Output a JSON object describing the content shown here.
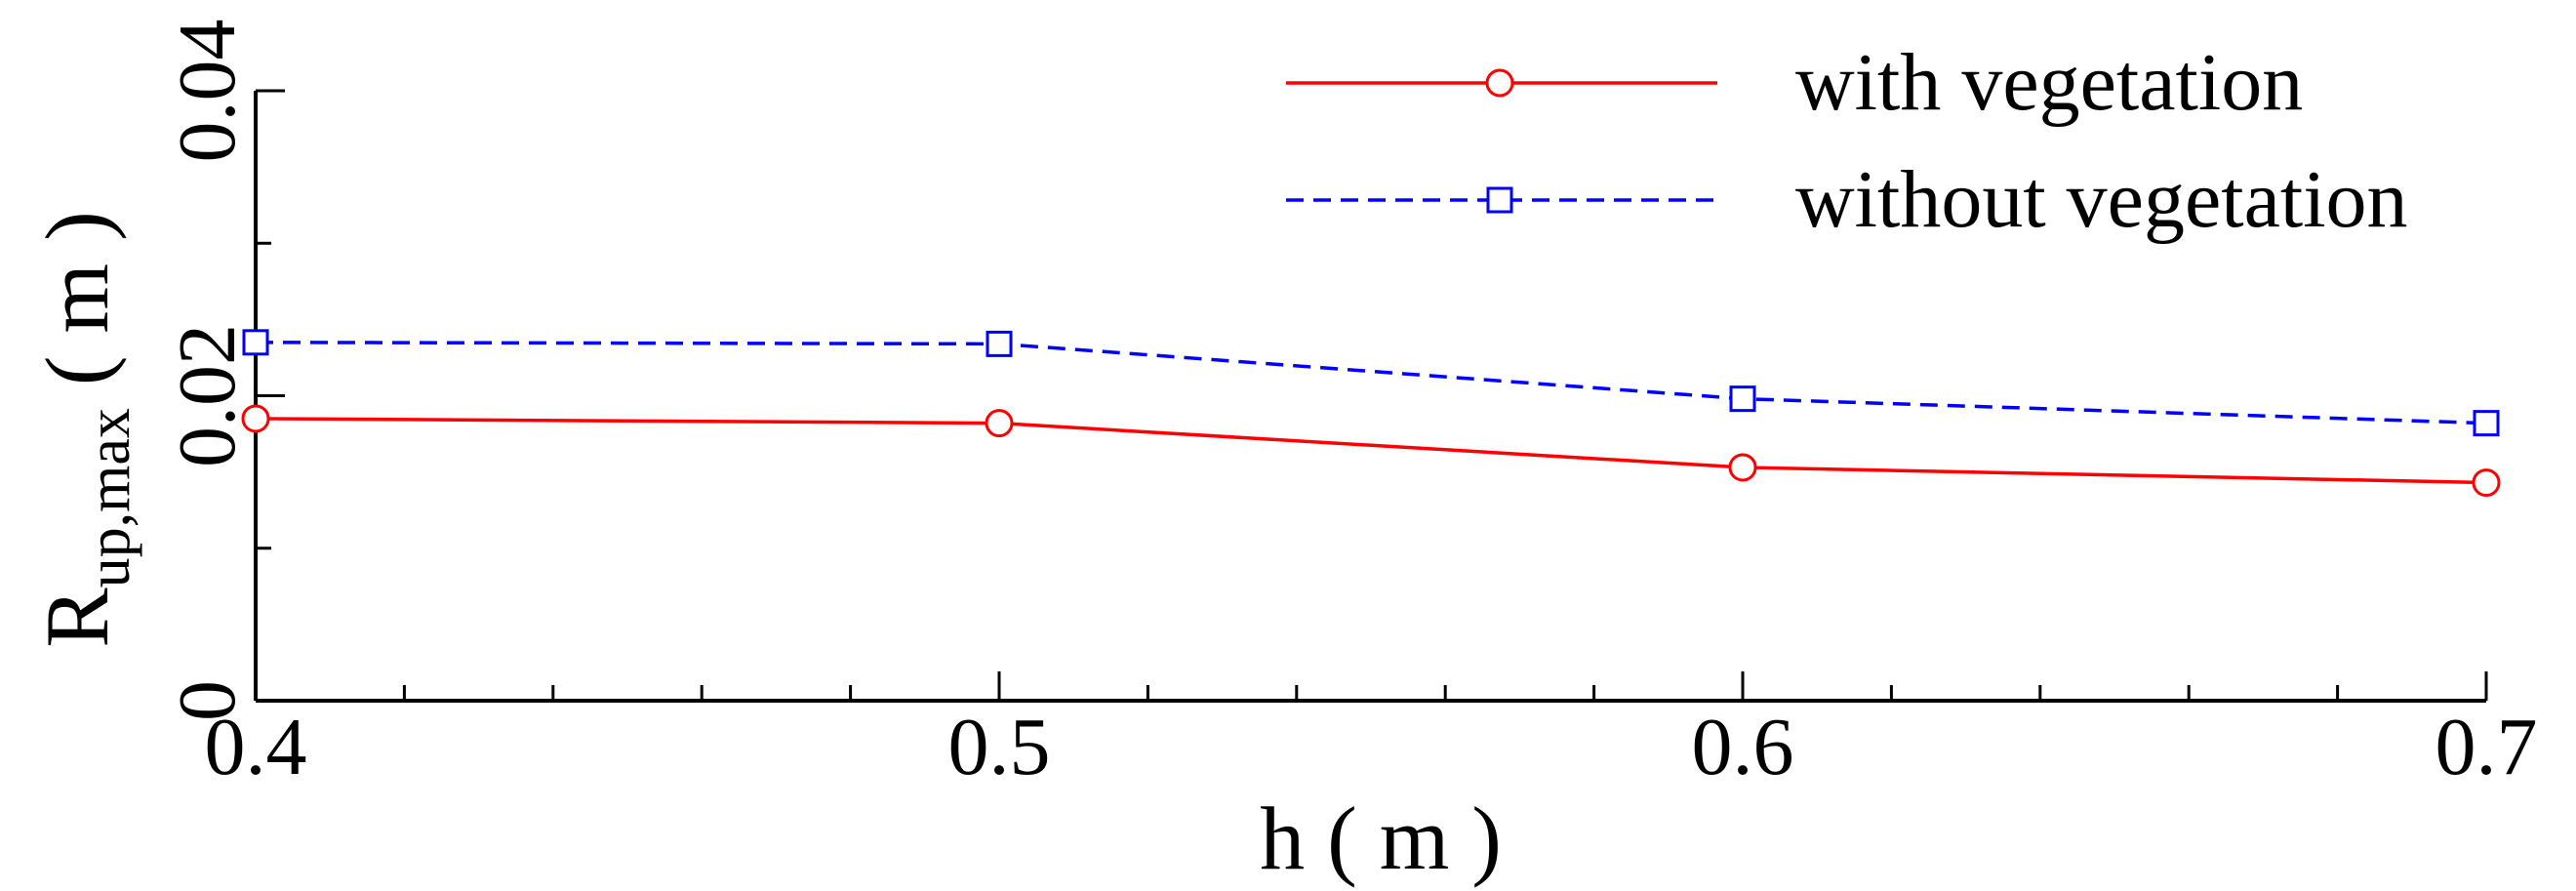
{
  "chart_data": {
    "type": "line",
    "xlabel": "h ( m )",
    "ylabel": {
      "main": "R",
      "subscript": "up,max",
      "unit": " ( m )"
    },
    "xlim": [
      0.4,
      0.7
    ],
    "ylim": [
      0,
      0.04
    ],
    "xticks": [
      0.4,
      0.5,
      0.6,
      0.7
    ],
    "xtick_labels": [
      "0.4",
      "0.5",
      "0.6",
      "0.7"
    ],
    "yticks": [
      0,
      0.02,
      0.04
    ],
    "ytick_labels": [
      "0",
      "0.02",
      "0.04"
    ],
    "x_minor_step": 0.02,
    "y_minor_step": 0.01,
    "grid": false,
    "legend_position": "top-right",
    "x": [
      0.4,
      0.5,
      0.6,
      0.7
    ],
    "series": [
      {
        "name": "with vegetation",
        "color": "#ff0000",
        "line_style": "solid",
        "marker": "circle",
        "values": [
          0.0185,
          0.0182,
          0.0153,
          0.0143
        ]
      },
      {
        "name": "without vegetation",
        "color": "#0000ff",
        "line_style": "dashed",
        "marker": "square",
        "values": [
          0.0235,
          0.0234,
          0.0198,
          0.0182
        ]
      }
    ]
  }
}
